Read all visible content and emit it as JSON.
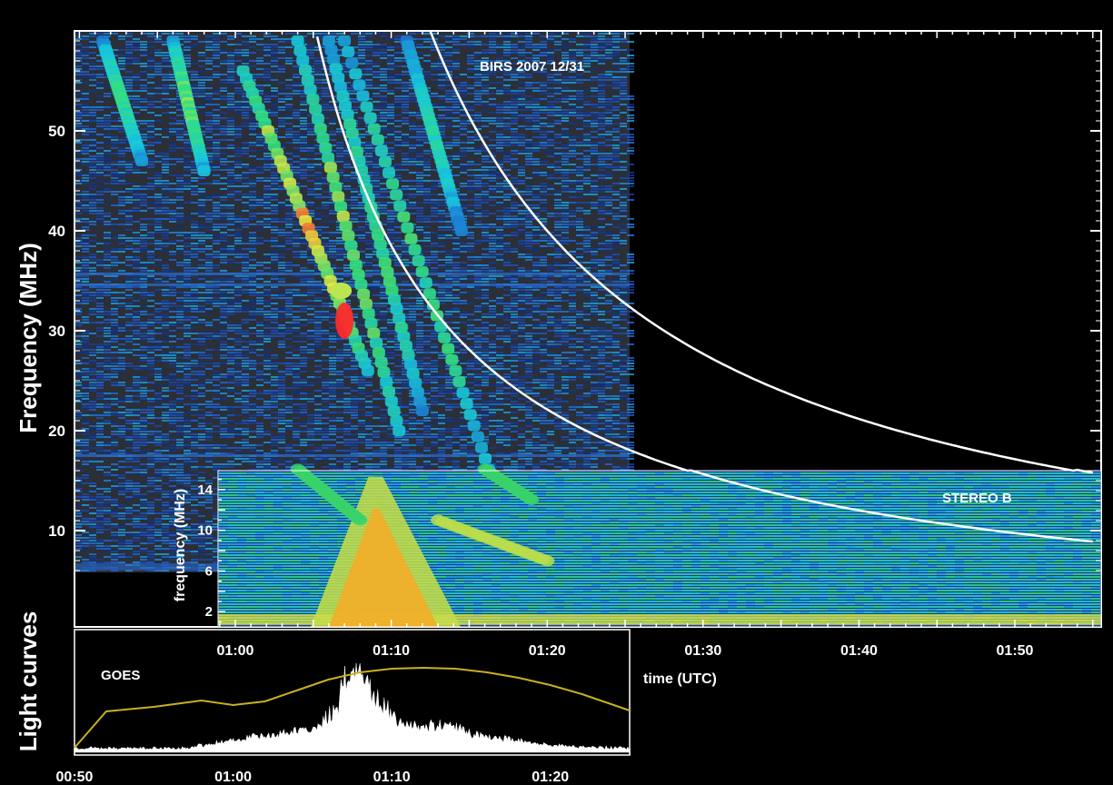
{
  "chart_data": [
    {
      "type": "heatmap",
      "instrument_label": "BIRS 2007 12/31",
      "ylabel": "Frequency (MHz)",
      "y_ticks": [
        10,
        20,
        30,
        40,
        50
      ],
      "ylim": [
        0,
        60
      ],
      "x_time_range": [
        "00:50",
        "01:25"
      ],
      "colormap": [
        "#0d1f5c",
        "#1e5bd1",
        "#18c8dc",
        "#35e07a",
        "#e8e840",
        "#ff2a2a"
      ],
      "bursts": [
        {
          "start": "00:51.5",
          "end": "00:54.0",
          "f_start": 59,
          "f_end": 47,
          "intensity": 0.55
        },
        {
          "start": "00:56.0",
          "end": "00:58.0",
          "f_start": 59,
          "f_end": 46,
          "intensity": 0.65
        },
        {
          "start": "01:00.5",
          "end": "01:08.5",
          "f_start": 56,
          "f_end": 26,
          "intensity": 0.85
        },
        {
          "start": "01:04.0",
          "end": "01:10.5",
          "f_start": 59,
          "f_end": 20,
          "intensity": 0.7
        },
        {
          "start": "01:06.0",
          "end": "01:12.0",
          "f_start": 59,
          "f_end": 22,
          "intensity": 0.6
        },
        {
          "start": "01:07.0",
          "end": "01:16.5",
          "f_start": 59,
          "f_end": 15,
          "intensity": 0.6
        },
        {
          "start": "01:11.0",
          "end": "01:14.5",
          "f_start": 59,
          "f_end": 40,
          "intensity": 0.5
        }
      ],
      "hotspot": {
        "time": "01:07.0",
        "freq": 31,
        "intensity": 1.0
      }
    },
    {
      "type": "heatmap",
      "instrument_label": "STEREO B",
      "ylabel": "frequency (MHz)",
      "y_ticks": [
        2,
        6,
        10,
        14
      ],
      "ylim": [
        0.5,
        16
      ],
      "xlabel": "time (UTC)",
      "x_ticks": [
        "01:00",
        "01:10",
        "01:20",
        "01:30",
        "01:40",
        "01:50"
      ],
      "x_time_range": [
        "00:59",
        "01:55"
      ],
      "colormap": [
        "#1b2a80",
        "#1e6ee0",
        "#22cbd0",
        "#3ad26a",
        "#e6e040",
        "#ff7a10"
      ],
      "features": [
        {
          "kind": "broadband-burst",
          "start": "01:06.0",
          "peak": "01:09.0",
          "end": "01:13.0",
          "intensity": 0.9
        },
        {
          "kind": "drifting-band",
          "start": "01:04.0",
          "end": "01:08.0",
          "f_start": 16,
          "f_end": 11,
          "intensity": 0.6
        },
        {
          "kind": "drifting-band",
          "start": "01:13.0",
          "end": "01:20.0",
          "f_start": 11,
          "f_end": 7,
          "intensity": 0.75
        },
        {
          "kind": "drifting-band",
          "start": "01:16.0",
          "end": "01:19.0",
          "f_start": 16,
          "f_end": 13,
          "intensity": 0.6
        }
      ]
    },
    {
      "type": "line",
      "panel_label": "Light curves",
      "legend": "GOES",
      "x_ticks": [
        "00:50",
        "01:00",
        "01:10",
        "01:20"
      ],
      "x_time_range": [
        "00:50",
        "01:25"
      ],
      "series": [
        {
          "name": "GOES",
          "color": "#c8b020",
          "x": [
            "00:50.0",
            "00:52.0",
            "00:55.0",
            "00:58.0",
            "01:00.0",
            "01:02.0",
            "01:04.0",
            "01:06.0",
            "01:08.0",
            "01:10.0",
            "01:12.0",
            "01:14.0",
            "01:16.0",
            "01:18.0",
            "01:20.0",
            "01:22.0",
            "01:25.0"
          ],
          "y": [
            0.05,
            0.45,
            0.5,
            0.57,
            0.52,
            0.56,
            0.68,
            0.8,
            0.88,
            0.92,
            0.93,
            0.92,
            0.88,
            0.82,
            0.74,
            0.64,
            0.46
          ]
        },
        {
          "color": "#ffffff",
          "x": [
            "00:50.0",
            "00:57.0",
            "01:00.0",
            "01:02.0",
            "01:04.0",
            "01:05.0",
            "01:06.0",
            "01:06.5",
            "01:07.0",
            "01:07.5",
            "01:08.0",
            "01:08.5",
            "01:09.5",
            "01:10.5",
            "01:12.0",
            "01:13.5",
            "01:15.0",
            "01:17.0",
            "01:19.0",
            "01:21.0",
            "01:25.0"
          ],
          "y": [
            0.03,
            0.03,
            0.12,
            0.18,
            0.2,
            0.25,
            0.4,
            0.45,
            0.75,
            0.92,
            0.82,
            0.7,
            0.5,
            0.32,
            0.25,
            0.3,
            0.18,
            0.14,
            0.08,
            0.05,
            0.03
          ]
        }
      ]
    }
  ],
  "overlay_curves": {
    "color": "#ffffff",
    "note_free": true,
    "curves": [
      {
        "t0": "00:56.5",
        "A": 520,
        "n": 1.0
      },
      {
        "t0": "00:57.5",
        "A": 900,
        "n": 1.0
      }
    ]
  }
}
